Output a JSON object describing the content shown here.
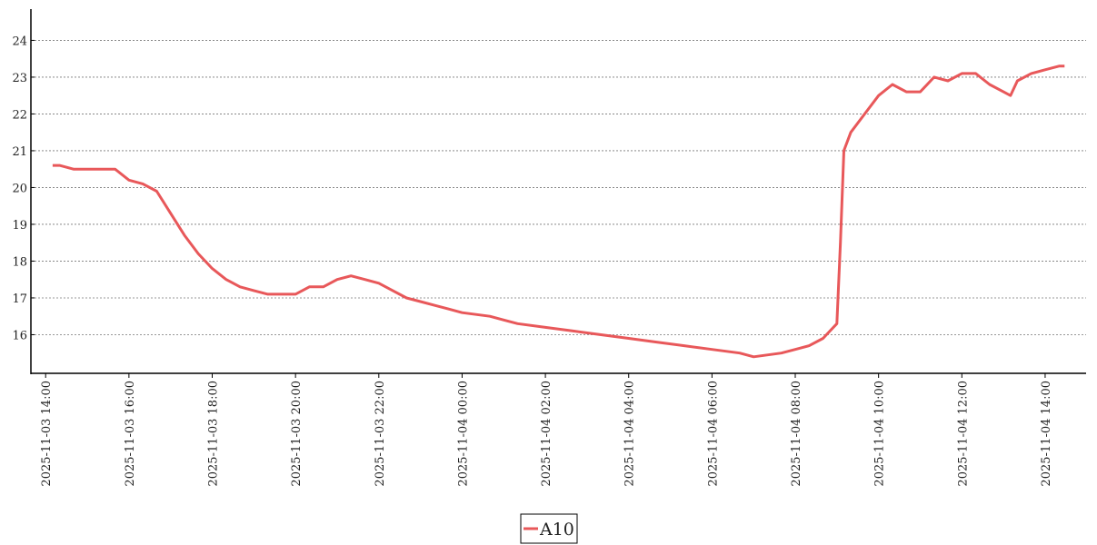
{
  "chart_data": {
    "type": "line",
    "x": [
      "2025-11-03 14:10",
      "2025-11-03 14:20",
      "2025-11-03 14:40",
      "2025-11-03 15:00",
      "2025-11-03 15:20",
      "2025-11-03 15:40",
      "2025-11-03 16:00",
      "2025-11-03 16:20",
      "2025-11-03 16:40",
      "2025-11-03 17:00",
      "2025-11-03 17:20",
      "2025-11-03 17:40",
      "2025-11-03 18:00",
      "2025-11-03 18:20",
      "2025-11-03 18:40",
      "2025-11-03 19:00",
      "2025-11-03 19:20",
      "2025-11-03 19:40",
      "2025-11-03 20:00",
      "2025-11-03 20:20",
      "2025-11-03 20:40",
      "2025-11-03 21:00",
      "2025-11-03 21:20",
      "2025-11-03 21:40",
      "2025-11-03 22:00",
      "2025-11-03 22:20",
      "2025-11-03 22:40",
      "2025-11-03 23:00",
      "2025-11-03 23:20",
      "2025-11-03 23:40",
      "2025-11-04 00:00",
      "2025-11-04 00:40",
      "2025-11-04 01:00",
      "2025-11-04 01:20",
      "2025-11-04 02:00",
      "2025-11-04 02:40",
      "2025-11-04 03:20",
      "2025-11-04 04:00",
      "2025-11-04 04:40",
      "2025-11-04 05:20",
      "2025-11-04 06:00",
      "2025-11-04 06:40",
      "2025-11-04 07:00",
      "2025-11-04 07:40",
      "2025-11-04 08:00",
      "2025-11-04 08:20",
      "2025-11-04 08:40",
      "2025-11-04 08:50",
      "2025-11-04 09:00",
      "2025-11-04 09:05",
      "2025-11-04 09:10",
      "2025-11-04 09:20",
      "2025-11-04 09:40",
      "2025-11-04 10:00",
      "2025-11-04 10:20",
      "2025-11-04 10:40",
      "2025-11-04 11:00",
      "2025-11-04 11:20",
      "2025-11-04 11:40",
      "2025-11-04 12:00",
      "2025-11-04 12:20",
      "2025-11-04 12:40",
      "2025-11-04 13:00",
      "2025-11-04 13:10",
      "2025-11-04 13:20",
      "2025-11-04 13:40",
      "2025-11-04 14:00",
      "2025-11-04 14:20",
      "2025-11-04 14:28"
    ],
    "series": [
      {
        "name": "A10",
        "color": "#e8585a",
        "values": [
          20.6,
          20.6,
          20.5,
          20.5,
          20.5,
          20.5,
          20.2,
          20.1,
          19.9,
          19.3,
          18.7,
          18.2,
          17.8,
          17.5,
          17.3,
          17.2,
          17.1,
          17.1,
          17.1,
          17.3,
          17.3,
          17.5,
          17.6,
          17.5,
          17.4,
          17.2,
          17.0,
          16.9,
          16.8,
          16.7,
          16.6,
          16.5,
          16.4,
          16.3,
          16.2,
          16.1,
          16.0,
          15.9,
          15.8,
          15.7,
          15.6,
          15.5,
          15.4,
          15.5,
          15.6,
          15.7,
          15.9,
          16.1,
          16.3,
          18.5,
          21.0,
          21.5,
          22.0,
          22.5,
          22.8,
          22.6,
          22.6,
          23.0,
          22.9,
          23.1,
          23.1,
          22.8,
          22.6,
          22.5,
          22.9,
          23.1,
          23.2,
          23.3,
          23.3
        ]
      }
    ],
    "xlim": [
      "2025-11-03 13:44",
      "2025-11-04 14:59"
    ],
    "xticks": [
      "2025-11-03 14:00",
      "2025-11-03 16:00",
      "2025-11-03 18:00",
      "2025-11-03 20:00",
      "2025-11-03 22:00",
      "2025-11-04 00:00",
      "2025-11-04 02:00",
      "2025-11-04 04:00",
      "2025-11-04 06:00",
      "2025-11-04 08:00",
      "2025-11-04 10:00",
      "2025-11-04 12:00",
      "2025-11-04 14:00"
    ],
    "ylim": [
      14.95,
      24.85
    ],
    "yticks": [
      16,
      17,
      18,
      19,
      20,
      21,
      22,
      23,
      24
    ],
    "grid": true
  }
}
